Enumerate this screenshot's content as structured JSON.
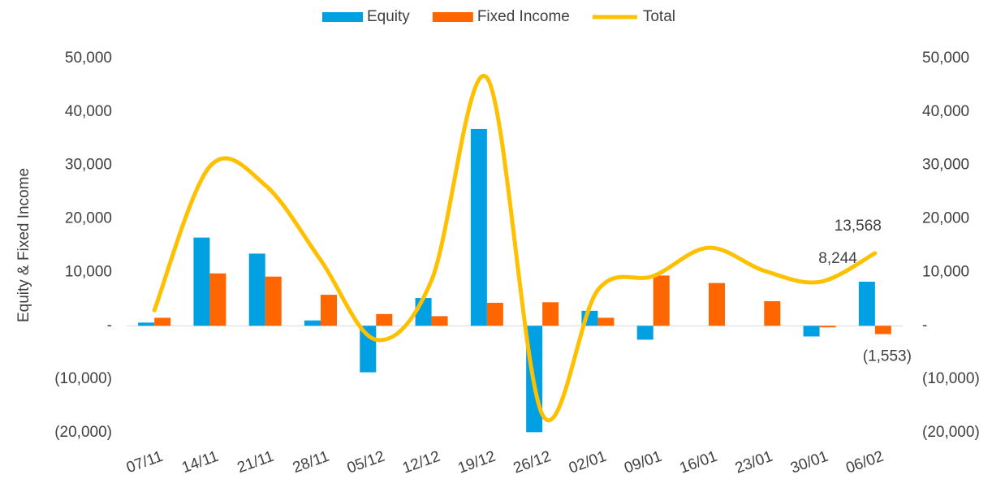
{
  "chart_data": {
    "type": "bar-line",
    "y_axis_label": "Equity & Fixed Income",
    "categories": [
      "07/11",
      "14/11",
      "21/11",
      "28/11",
      "05/12",
      "12/12",
      "19/12",
      "26/12",
      "02/01",
      "09/01",
      "16/01",
      "23/01",
      "30/01",
      "06/02"
    ],
    "series": [
      {
        "name": "Equity",
        "type": "bar",
        "color": "#00a0e3",
        "values": [
          600,
          16500,
          13500,
          1000,
          -8700,
          5200,
          36800,
          -19900,
          2800,
          -2600,
          0,
          0,
          -2000,
          8244
        ],
        "value_labels": [
          null,
          null,
          null,
          null,
          null,
          null,
          null,
          null,
          null,
          null,
          null,
          null,
          null,
          "8,244"
        ]
      },
      {
        "name": "Fixed Income",
        "type": "bar",
        "color": "#ff6600",
        "values": [
          1500,
          9800,
          9200,
          5800,
          2200,
          1800,
          4300,
          4400,
          1500,
          9400,
          8000,
          4600,
          -300,
          -1553
        ],
        "value_labels": [
          null,
          null,
          null,
          null,
          null,
          null,
          null,
          null,
          null,
          null,
          null,
          null,
          null,
          "(1,553)"
        ]
      },
      {
        "name": "Total",
        "type": "line",
        "axis": "y2",
        "color": "#ffc000",
        "values": [
          2900,
          29800,
          26300,
          12300,
          -2600,
          8500,
          46400,
          -16600,
          6700,
          9300,
          14600,
          10300,
          8200,
          13568
        ],
        "value_labels": [
          null,
          null,
          null,
          null,
          null,
          null,
          null,
          null,
          null,
          null,
          null,
          null,
          null,
          "13,568"
        ]
      }
    ],
    "ylim": [
      -20000,
      50000
    ],
    "yticks": [
      {
        "value": -20000,
        "label": "(20,000)"
      },
      {
        "value": -10000,
        "label": "(10,000)"
      },
      {
        "value": 0,
        "label": "-"
      },
      {
        "value": 10000,
        "label": "10,000"
      },
      {
        "value": 20000,
        "label": "20,000"
      },
      {
        "value": 30000,
        "label": "30,000"
      },
      {
        "value": 40000,
        "label": "40,000"
      },
      {
        "value": 50000,
        "label": "50,000"
      }
    ],
    "y2lim": [
      -20000,
      50000
    ],
    "y2ticks": [
      {
        "value": -20000,
        "label": "(20,000)"
      },
      {
        "value": -10000,
        "label": "(10,000)"
      },
      {
        "value": 0,
        "label": "-"
      },
      {
        "value": 10000,
        "label": "10,000"
      },
      {
        "value": 20000,
        "label": "20,000"
      },
      {
        "value": 30000,
        "label": "30,000"
      },
      {
        "value": 40000,
        "label": "40,000"
      },
      {
        "value": 50000,
        "label": "50,000"
      }
    ],
    "grid": false,
    "legend": "top"
  }
}
